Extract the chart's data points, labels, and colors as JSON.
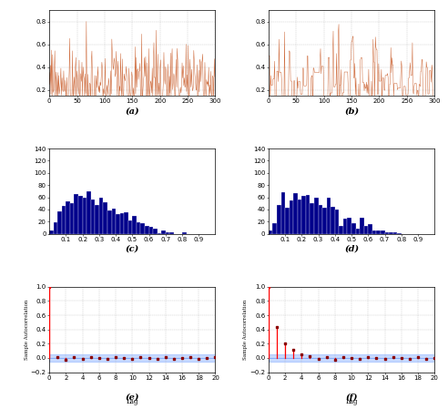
{
  "fig_width": 4.92,
  "fig_height": 4.49,
  "dpi": 100,
  "trace_color": "#cd6839",
  "hist_color": "#00008B",
  "acf_line_color": "red",
  "acf_dot_color": "#8B0000",
  "acf_band_color": "#6699ff",
  "acf_band_alpha": 0.35,
  "trace_a_ylim": [
    0.15,
    0.9
  ],
  "trace_b_ylim": [
    0.15,
    0.9
  ],
  "trace_xlim": [
    0,
    300
  ],
  "hist_xlim": [
    0,
    1
  ],
  "hist_ylim": [
    0,
    140
  ],
  "acf_ylim": [
    -0.2,
    1.0
  ],
  "acf_xlim": [
    0,
    20
  ],
  "acf_yticks": [
    -0.2,
    0.0,
    0.2,
    0.4,
    0.6,
    0.8,
    1.0
  ],
  "acf_xticks": [
    0,
    2,
    4,
    6,
    8,
    10,
    12,
    14,
    16,
    18,
    20
  ],
  "trace_yticks": [
    0.2,
    0.4,
    0.6,
    0.8
  ],
  "trace_xticks": [
    0,
    50,
    100,
    150,
    200,
    250,
    300
  ],
  "hist_xticks": [
    0.1,
    0.2,
    0.3,
    0.4,
    0.5,
    0.6,
    0.7,
    0.8,
    0.9
  ],
  "hist_yticks": [
    0,
    20,
    40,
    60,
    80,
    100,
    120,
    140
  ],
  "acf_b_lags": [
    1,
    2,
    3,
    4,
    5,
    6,
    7,
    8,
    9,
    10,
    11,
    12,
    13,
    14,
    15,
    16,
    17,
    18,
    19,
    20
  ],
  "acf_b_values": [
    0.44,
    0.2,
    0.12,
    0.05,
    0.02,
    -0.01,
    0.01,
    -0.02,
    0.01,
    0.0,
    -0.01,
    0.01,
    0.0,
    -0.01,
    0.01,
    0.0,
    -0.01,
    0.01,
    -0.01,
    0.0
  ],
  "acf_a_lags": [
    1,
    2,
    3,
    4,
    5,
    6,
    7,
    8,
    9,
    10,
    11,
    12,
    13,
    14,
    15,
    16,
    17,
    18,
    19,
    20
  ],
  "acf_a_values": [
    0.01,
    -0.02,
    0.01,
    -0.01,
    0.01,
    0.0,
    -0.01,
    0.01,
    0.0,
    -0.01,
    0.01,
    0.0,
    -0.01,
    0.01,
    -0.01,
    0.0,
    0.01,
    -0.01,
    0.0,
    0.01
  ],
  "acf_band_upper": 0.05,
  "acf_band_lower": -0.05,
  "sublabel_fontsize": 7,
  "tick_fontsize": 5,
  "acf_ylabel_fontsize": 4.0,
  "acf_xlabel_fontsize": 5,
  "n_bins_hist": 40,
  "n_samples": 1000,
  "n_trace_display": 300,
  "seed_a": 42,
  "seed_b": 77
}
